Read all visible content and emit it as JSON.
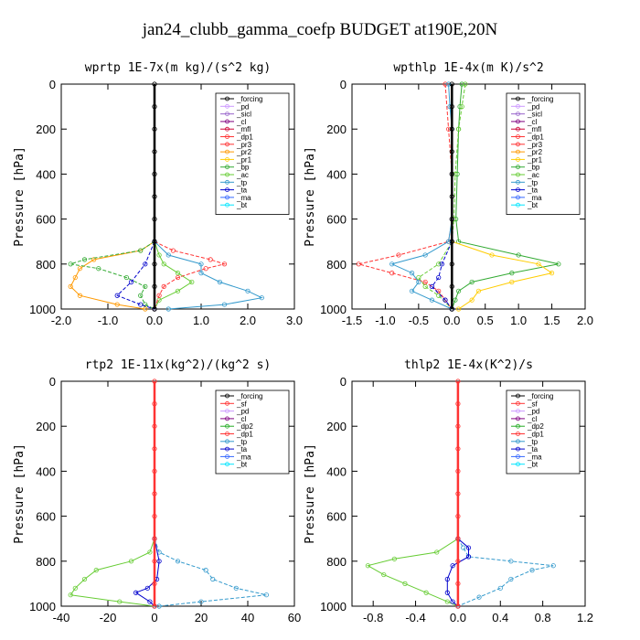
{
  "figure_title": "jan24_clubb_gamma_coefp  BUDGET at190E,20N",
  "colors": {
    "forcing": "#000000",
    "pd": "#cc99ff",
    "sicl": "#9966cc",
    "cl": "#800080",
    "mfl": "#cc0033",
    "dp1": "#ff3333",
    "pr3": "#ff3333",
    "pr2": "#ff9900",
    "pr1": "#ffcc00",
    "bp": "#33aa33",
    "ac": "#66cc33",
    "tp": "#3399cc",
    "ta": "#0000cc",
    "ma": "#3366ff",
    "bt": "#00e5ff",
    "sf": "#ff3333",
    "dp2": "#22aa22"
  },
  "chart_data": [
    {
      "type": "line",
      "title": "wprtp  1E-7x(m kg)/(s^2 kg)",
      "ylabel": "Pressure [hPa]",
      "xlim": [
        -2.0,
        3.0
      ],
      "ylim": [
        1000,
        0
      ],
      "xticks": [
        "-2.0",
        "-1.0",
        "0.0",
        "1.0",
        "2.0",
        "3.0"
      ],
      "xtick_values": [
        -2,
        -1,
        0,
        1,
        2,
        3
      ],
      "yticks": [
        "0",
        "200",
        "400",
        "600",
        "800",
        "1000"
      ],
      "ytick_values": [
        0,
        200,
        400,
        600,
        800,
        1000
      ],
      "legend": [
        "_forcing",
        "_pd",
        "_sicl",
        "_cl",
        "_mfl",
        "_dp1",
        "_pr3",
        "_pr2",
        "_pr1",
        "_bp",
        "_ac",
        "_tp",
        "_ta",
        "_ma",
        "_bt"
      ],
      "legend_colors": [
        "forcing",
        "pd",
        "sicl",
        "cl",
        "mfl",
        "dp1",
        "pr3",
        "pr2",
        "pr1",
        "bp",
        "ac",
        "tp",
        "ta",
        "ma",
        "bt"
      ],
      "legend_position": "top-right",
      "series": [
        {
          "color": "pr2",
          "p": [
            700,
            740,
            780,
            820,
            860,
            900,
            940,
            980,
            1000
          ],
          "v": [
            0,
            -0.3,
            -1.3,
            -1.6,
            -1.7,
            -1.8,
            -1.6,
            -0.8,
            -0.2
          ]
        },
        {
          "color": "bp",
          "p": [
            700,
            740,
            780,
            800,
            820,
            860,
            900,
            940,
            980,
            1000
          ],
          "v": [
            0,
            -0.3,
            -1.5,
            -1.8,
            -1.2,
            -0.6,
            -0.2,
            -0.3,
            -0.2,
            0
          ]
        },
        {
          "color": "ac",
          "p": [
            700,
            760,
            800,
            840,
            880,
            920,
            960,
            1000
          ],
          "v": [
            0,
            0.1,
            0.2,
            0.5,
            0.8,
            0.5,
            0.1,
            0
          ]
        },
        {
          "color": "pr3",
          "p": [
            700,
            740,
            780,
            800,
            820,
            860,
            900,
            940,
            1000
          ],
          "v": [
            0,
            0.4,
            1.2,
            1.5,
            1.1,
            0.5,
            0.2,
            0.1,
            0
          ]
        },
        {
          "color": "tp",
          "p": [
            700,
            760,
            800,
            840,
            880,
            920,
            950,
            980,
            1000
          ],
          "v": [
            0,
            0.3,
            1.0,
            1.0,
            1.4,
            2.0,
            2.3,
            1.5,
            0.3
          ]
        },
        {
          "color": "ta",
          "p": [
            700,
            800,
            880,
            940,
            980,
            1000
          ],
          "v": [
            0,
            -0.2,
            -0.5,
            -0.8,
            -0.3,
            0
          ]
        },
        {
          "color": "forcing",
          "p": [
            0,
            100,
            200,
            300,
            400,
            500,
            600,
            700,
            800,
            900,
            1000
          ],
          "v": [
            0,
            0,
            0,
            0,
            0,
            0,
            0,
            0,
            0,
            0,
            0
          ]
        }
      ]
    },
    {
      "type": "line",
      "title": "wpthlp  1E-4x(m K)/s^2",
      "ylabel": "Pressure [hPa]",
      "xlim": [
        -1.5,
        2.0
      ],
      "ylim": [
        1000,
        0
      ],
      "xticks": [
        "-1.5",
        "-1.0",
        "-0.5",
        "0.0",
        "0.5",
        "1.0",
        "1.5",
        "2.0"
      ],
      "xtick_values": [
        -1.5,
        -1,
        -0.5,
        0,
        0.5,
        1,
        1.5,
        2
      ],
      "yticks": [
        "0",
        "200",
        "400",
        "600",
        "800",
        "1000"
      ],
      "ytick_values": [
        0,
        200,
        400,
        600,
        800,
        1000
      ],
      "legend": [
        "_forcing",
        "_pd",
        "_sicl",
        "_cl",
        "_mfl",
        "_dp1",
        "_pr3",
        "_pr2",
        "_pr1",
        "_bp",
        "_ac",
        "_tp",
        "_ta",
        "_ma",
        "_bt"
      ],
      "legend_colors": [
        "forcing",
        "pd",
        "sicl",
        "cl",
        "mfl",
        "dp1",
        "pr3",
        "pr2",
        "pr1",
        "bp",
        "ac",
        "tp",
        "ta",
        "ma",
        "bt"
      ],
      "legend_position": "top-right",
      "series": [
        {
          "color": "bp",
          "p": [
            0,
            100,
            200,
            400,
            600,
            700,
            760,
            800,
            840,
            880,
            920,
            960,
            1000
          ],
          "v": [
            0.15,
            0.12,
            0.1,
            0.08,
            0.06,
            0.1,
            1.0,
            1.6,
            0.9,
            0.3,
            0.1,
            0.05,
            0
          ]
        },
        {
          "color": "ac",
          "p": [
            0,
            100,
            200,
            400,
            600,
            700,
            800,
            860,
            900,
            940,
            1000
          ],
          "v": [
            0.2,
            0.15,
            0.1,
            0.05,
            0.03,
            0,
            -0.2,
            -0.5,
            -0.4,
            -0.2,
            0
          ]
        },
        {
          "color": "pr1",
          "p": [
            700,
            760,
            800,
            840,
            880,
            920,
            960,
            1000
          ],
          "v": [
            0,
            0.6,
            1.3,
            1.5,
            0.9,
            0.4,
            0.3,
            0.1
          ]
        },
        {
          "color": "pr3",
          "p": [
            0,
            200,
            400,
            600,
            700,
            760,
            800,
            840,
            880,
            920,
            960,
            1000
          ],
          "v": [
            -0.1,
            -0.05,
            0,
            0,
            -0.05,
            -0.8,
            -1.4,
            -0.9,
            -0.4,
            -0.2,
            -0.1,
            0
          ]
        },
        {
          "color": "tp",
          "p": [
            0,
            100,
            200,
            400,
            600,
            700,
            760,
            800,
            840,
            880,
            920,
            960,
            1000
          ],
          "v": [
            -0.05,
            -0.03,
            0,
            0,
            0,
            -0.05,
            -0.4,
            -0.9,
            -0.6,
            -0.5,
            -0.6,
            -0.3,
            0
          ]
        },
        {
          "color": "ta",
          "p": [
            700,
            800,
            860,
            900,
            960,
            1000
          ],
          "v": [
            0,
            -0.15,
            -0.2,
            -0.3,
            -0.1,
            0
          ]
        },
        {
          "color": "forcing",
          "p": [
            0,
            100,
            200,
            300,
            400,
            500,
            600,
            700,
            800,
            900,
            1000
          ],
          "v": [
            0,
            0,
            0,
            0,
            0,
            0,
            0,
            0,
            0,
            0,
            0
          ]
        }
      ]
    },
    {
      "type": "line",
      "title": "rtp2  1E-11x(kg^2)/(kg^2 s)",
      "ylabel": "Pressure [hPa]",
      "xlim": [
        -40,
        60
      ],
      "ylim": [
        1000,
        0
      ],
      "xticks": [
        "-40",
        "-20",
        "0",
        "20",
        "40",
        "60"
      ],
      "xtick_values": [
        -40,
        -20,
        0,
        20,
        40,
        60
      ],
      "yticks": [
        "0",
        "200",
        "400",
        "600",
        "800",
        "1000"
      ],
      "ytick_values": [
        0,
        200,
        400,
        600,
        800,
        1000
      ],
      "legend": [
        "_forcing",
        "_sf",
        "_pd",
        "_cl",
        "_dp2",
        "_dp1",
        "_tp",
        "_ta",
        "_ma",
        "_bt"
      ],
      "legend_colors": [
        "forcing",
        "sf",
        "pd",
        "cl",
        "dp2",
        "dp1",
        "tp",
        "ta",
        "ma",
        "bt"
      ],
      "legend_position": "top-right",
      "series": [
        {
          "color": "ac",
          "p": [
            700,
            760,
            800,
            840,
            880,
            920,
            950,
            980,
            1000
          ],
          "v": [
            0,
            -2,
            -10,
            -25,
            -30,
            -34,
            -36,
            -15,
            0
          ]
        },
        {
          "color": "tp",
          "p": [
            700,
            760,
            800,
            840,
            880,
            920,
            950,
            980,
            1000
          ],
          "v": [
            0,
            2,
            10,
            22,
            25,
            35,
            48,
            20,
            2
          ]
        },
        {
          "color": "ta",
          "p": [
            700,
            800,
            880,
            920,
            940,
            980,
            1000
          ],
          "v": [
            0,
            2,
            1,
            -3,
            -8,
            -2,
            0
          ]
        },
        {
          "color": "sf",
          "p": [
            0,
            100,
            200,
            300,
            400,
            500,
            600,
            700,
            800,
            900,
            1000
          ],
          "v": [
            0,
            0,
            0,
            0,
            0,
            0,
            0,
            0,
            0,
            0,
            0
          ]
        }
      ]
    },
    {
      "type": "line",
      "title": "thlp2  1E-4x(K^2)/s",
      "ylabel": "Pressure [hPa]",
      "xlim": [
        -1.0,
        1.2
      ],
      "ylim": [
        1000,
        0
      ],
      "xticks": [
        "-0.8",
        "-0.4",
        "0.0",
        "0.4",
        "0.8",
        "1.2"
      ],
      "xtick_values": [
        -0.8,
        -0.4,
        0,
        0.4,
        0.8,
        1.2
      ],
      "yticks": [
        "0",
        "200",
        "400",
        "600",
        "800",
        "1000"
      ],
      "ytick_values": [
        0,
        200,
        400,
        600,
        800,
        1000
      ],
      "legend": [
        "_forcing",
        "_sf",
        "_pd",
        "_cl",
        "_dp2",
        "_dp1",
        "_tp",
        "_ta",
        "_ma",
        "_bt"
      ],
      "legend_colors": [
        "forcing",
        "sf",
        "pd",
        "cl",
        "dp2",
        "dp1",
        "tp",
        "ta",
        "ma",
        "bt"
      ],
      "legend_position": "top-right",
      "series": [
        {
          "color": "ac",
          "p": [
            700,
            760,
            790,
            820,
            860,
            900,
            940,
            980,
            1000
          ],
          "v": [
            0,
            -0.2,
            -0.6,
            -0.85,
            -0.7,
            -0.5,
            -0.3,
            -0.1,
            0
          ]
        },
        {
          "color": "tp",
          "p": [
            700,
            740,
            780,
            800,
            820,
            840,
            880,
            920,
            960,
            1000
          ],
          "v": [
            0,
            0.05,
            0.1,
            0.5,
            0.9,
            0.7,
            0.5,
            0.4,
            0.2,
            0
          ]
        },
        {
          "color": "ta",
          "p": [
            700,
            740,
            780,
            820,
            880,
            940,
            980,
            1000
          ],
          "v": [
            0,
            0.1,
            0.1,
            -0.05,
            -0.1,
            -0.1,
            -0.05,
            0
          ]
        },
        {
          "color": "sf",
          "p": [
            0,
            100,
            200,
            300,
            400,
            500,
            600,
            700,
            800,
            900,
            1000
          ],
          "v": [
            0,
            0,
            0,
            0,
            0,
            0,
            0,
            0,
            0,
            0,
            0
          ]
        }
      ]
    }
  ]
}
